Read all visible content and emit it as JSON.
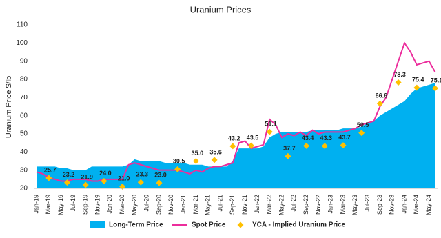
{
  "chart_data": {
    "type": "combo",
    "title": "Uranium Prices",
    "y_label": "Uranium Price $/lb",
    "categories": [
      "Jan-19",
      null,
      "Mar-19",
      null,
      "May-19",
      null,
      "Jul-19",
      null,
      "Sep-19",
      null,
      "Nov-19",
      null,
      "Jan-20",
      null,
      "Mar-20",
      null,
      "May-20",
      null,
      "Jul-20",
      null,
      "Sep-20",
      null,
      "Nov-20",
      null,
      "Jan-21",
      null,
      "Mar-21",
      null,
      "May-21",
      null,
      "Jul-21",
      null,
      "Sep-21",
      null,
      "Nov-21",
      null,
      "Jan-22",
      null,
      "Mar-22",
      null,
      "May-22",
      null,
      "Jul-22",
      null,
      "Sep-22",
      null,
      "Nov-22",
      null,
      "Jan-23",
      null,
      "Mar-23",
      null,
      "May-23",
      null,
      "Jul-23",
      null,
      "Sep-23",
      null,
      "Nov-23",
      null,
      "Jan-24",
      null,
      "Mar-24",
      null,
      "May-24",
      null
    ],
    "series": [
      {
        "name": "Long-Term Price",
        "type": "area",
        "color": "#00b0f0",
        "values": [
          32,
          32,
          32,
          32,
          31,
          31,
          30,
          30,
          30,
          32,
          32,
          32,
          32,
          32,
          32,
          33,
          36,
          35,
          35,
          35,
          35,
          34,
          34,
          34,
          34,
          33,
          33,
          33,
          32,
          32,
          32,
          32,
          35,
          42,
          42,
          42,
          42,
          43,
          48,
          50,
          51,
          51,
          51,
          51,
          51,
          52,
          52,
          52,
          52,
          52,
          53,
          53,
          53,
          54,
          56,
          57,
          60,
          62,
          64,
          66,
          68,
          72,
          75,
          76,
          77,
          78
        ]
      },
      {
        "name": "Spot Price",
        "type": "line",
        "color": "#ec2d9c",
        "values": [
          29,
          28,
          26,
          25,
          24,
          24,
          25,
          25,
          25,
          24,
          24,
          25,
          25,
          25,
          25,
          33,
          34,
          33,
          32,
          31,
          30,
          30,
          30,
          30,
          29,
          28,
          30,
          29,
          31,
          32,
          32,
          33,
          34,
          45,
          46,
          42,
          43,
          44,
          58,
          55,
          48,
          50,
          49,
          51,
          49,
          52,
          50,
          51,
          51,
          51,
          51,
          52,
          53,
          55,
          56,
          57,
          65,
          70,
          80,
          90,
          100,
          95,
          88,
          89,
          90,
          84
        ]
      },
      {
        "name": "YCA - Implied Uranium Price",
        "type": "scatter",
        "color": "#ffc000",
        "values": [
          null,
          null,
          25.7,
          null,
          null,
          23.2,
          null,
          null,
          21.9,
          null,
          null,
          24.0,
          null,
          null,
          21.0,
          null,
          null,
          23.3,
          null,
          null,
          23.0,
          null,
          null,
          30.5,
          null,
          null,
          35.0,
          null,
          null,
          35.6,
          null,
          null,
          43.2,
          null,
          null,
          43.5,
          null,
          null,
          51.1,
          null,
          null,
          37.7,
          null,
          null,
          43.4,
          null,
          null,
          43.3,
          null,
          null,
          43.7,
          null,
          null,
          50.5,
          null,
          null,
          66.6,
          null,
          null,
          78.3,
          null,
          null,
          75.4,
          null,
          null,
          75.1
        ],
        "value_labels": [
          null,
          null,
          "25.7",
          null,
          null,
          "23.2",
          null,
          null,
          "21.9",
          null,
          null,
          "24.0",
          null,
          null,
          "21.0",
          null,
          null,
          "23.3",
          null,
          null,
          "23.0",
          null,
          null,
          "30.5",
          null,
          null,
          "35.0",
          null,
          null,
          "35.6",
          null,
          null,
          "43.2",
          null,
          null,
          "43.5",
          null,
          null,
          "51.1",
          null,
          null,
          "37.7",
          null,
          null,
          "43.4",
          null,
          null,
          "43.3",
          null,
          null,
          "43.7",
          null,
          null,
          "50.5",
          null,
          null,
          "66.6",
          null,
          null,
          "78.3",
          null,
          null,
          "75.4",
          null,
          null,
          "75.1"
        ]
      }
    ],
    "ylim": [
      20,
      110
    ],
    "yticks": [
      20,
      30,
      40,
      50,
      60,
      70,
      80,
      90,
      100,
      110
    ],
    "grid": false,
    "legend": "bottom"
  }
}
